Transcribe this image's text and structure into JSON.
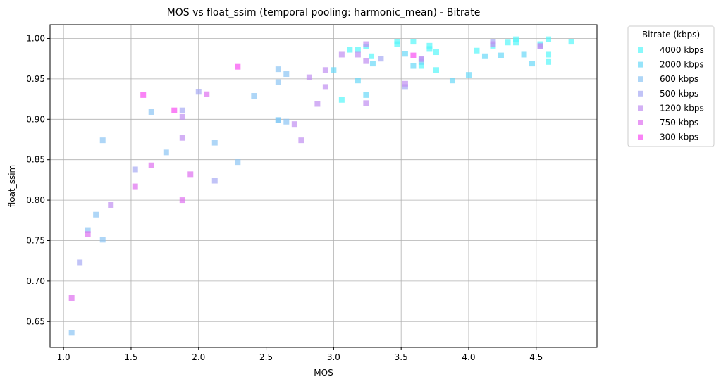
{
  "chart_data": {
    "type": "scatter",
    "title": "MOS vs float_ssim (temporal pooling: harmonic_mean) - Bitrate",
    "xlabel": "MOS",
    "ylabel": "float_ssim",
    "xlim": [
      0.9,
      4.95
    ],
    "ylim": [
      0.618,
      1.017
    ],
    "xticks": [
      "1.0",
      "1.5",
      "2.0",
      "2.5",
      "3.0",
      "3.5",
      "4.0",
      "4.5"
    ],
    "yticks": [
      "0.65",
      "0.70",
      "0.75",
      "0.80",
      "0.85",
      "0.90",
      "0.95",
      "1.00"
    ],
    "grid": true,
    "marker": "square",
    "legend": {
      "title": "Bitrate (kbps)",
      "placement": "outside-top-right"
    },
    "series": [
      {
        "name": "4000 kbps",
        "color": "#55f7f9",
        "points": [
          [
            3.12,
            0.986
          ],
          [
            3.18,
            0.986
          ],
          [
            3.24,
            0.99
          ],
          [
            3.28,
            0.978
          ],
          [
            3.47,
            0.993
          ],
          [
            3.47,
            0.996
          ],
          [
            3.59,
            0.996
          ],
          [
            3.71,
            0.991
          ],
          [
            3.71,
            0.987
          ],
          [
            3.76,
            0.983
          ],
          [
            3.76,
            0.961
          ],
          [
            4.06,
            0.985
          ],
          [
            4.18,
            0.991
          ],
          [
            4.29,
            0.995
          ],
          [
            4.35,
            0.995
          ],
          [
            4.35,
            0.999
          ],
          [
            4.53,
            0.993
          ],
          [
            4.59,
            0.999
          ],
          [
            4.59,
            0.98
          ],
          [
            4.59,
            0.971
          ],
          [
            4.76,
            0.996
          ],
          [
            3.65,
            0.966
          ],
          [
            3.06,
            0.924
          ]
        ]
      },
      {
        "name": "2000 kbps",
        "color": "#6ad8f8",
        "points": [
          [
            3.0,
            0.961
          ],
          [
            3.18,
            0.948
          ],
          [
            3.24,
            0.93
          ],
          [
            3.29,
            0.969
          ],
          [
            3.53,
            0.981
          ],
          [
            3.59,
            0.966
          ],
          [
            3.88,
            0.948
          ],
          [
            4.0,
            0.955
          ],
          [
            4.12,
            0.978
          ],
          [
            4.24,
            0.979
          ],
          [
            4.41,
            0.98
          ],
          [
            4.47,
            0.969
          ],
          [
            2.59,
            0.899
          ],
          [
            3.65,
            0.971
          ]
        ]
      },
      {
        "name": "600 kbps",
        "color": "#8cc4f4",
        "points": [
          [
            1.06,
            0.636
          ],
          [
            1.18,
            0.763
          ],
          [
            1.24,
            0.782
          ],
          [
            1.29,
            0.751
          ],
          [
            1.29,
            0.874
          ],
          [
            1.65,
            0.909
          ],
          [
            1.76,
            0.859
          ],
          [
            2.12,
            0.871
          ],
          [
            2.29,
            0.847
          ],
          [
            2.41,
            0.929
          ],
          [
            2.59,
            0.962
          ],
          [
            2.59,
            0.946
          ],
          [
            2.59,
            0.899
          ],
          [
            2.65,
            0.956
          ],
          [
            2.65,
            0.897
          ]
        ]
      },
      {
        "name": "500 kbps",
        "color": "#a6aaf3",
        "points": [
          [
            1.12,
            0.723
          ],
          [
            1.53,
            0.838
          ],
          [
            1.88,
            0.911
          ],
          [
            2.0,
            0.934
          ],
          [
            2.12,
            0.824
          ],
          [
            3.35,
            0.975
          ],
          [
            3.53,
            0.94
          ],
          [
            3.65,
            0.974
          ],
          [
            4.18,
            0.996
          ],
          [
            4.53,
            0.991
          ]
        ]
      },
      {
        "name": "1200 kbps",
        "color": "#c18ff1",
        "points": [
          [
            1.35,
            0.794
          ],
          [
            1.88,
            0.903
          ],
          [
            1.88,
            0.877
          ],
          [
            2.71,
            0.894
          ],
          [
            2.76,
            0.874
          ],
          [
            2.82,
            0.952
          ],
          [
            2.88,
            0.919
          ],
          [
            2.94,
            0.94
          ],
          [
            2.94,
            0.961
          ],
          [
            3.06,
            0.98
          ],
          [
            3.18,
            0.98
          ],
          [
            3.24,
            0.972
          ],
          [
            3.24,
            0.92
          ],
          [
            3.24,
            0.993
          ],
          [
            3.53,
            0.944
          ],
          [
            3.65,
            0.975
          ],
          [
            4.18,
            0.993
          ],
          [
            4.53,
            0.99
          ]
        ]
      },
      {
        "name": "750 kbps",
        "color": "#de6ff0",
        "points": [
          [
            1.06,
            0.679
          ],
          [
            1.18,
            0.758
          ],
          [
            1.53,
            0.817
          ],
          [
            1.65,
            0.843
          ],
          [
            1.88,
            0.8
          ],
          [
            1.94,
            0.832
          ],
          [
            2.06,
            0.931
          ]
        ]
      },
      {
        "name": "300 kbps",
        "color": "#f84ef2",
        "points": [
          [
            1.59,
            0.93
          ],
          [
            1.82,
            0.911
          ],
          [
            2.29,
            0.965
          ],
          [
            3.59,
            0.979
          ]
        ]
      }
    ]
  }
}
